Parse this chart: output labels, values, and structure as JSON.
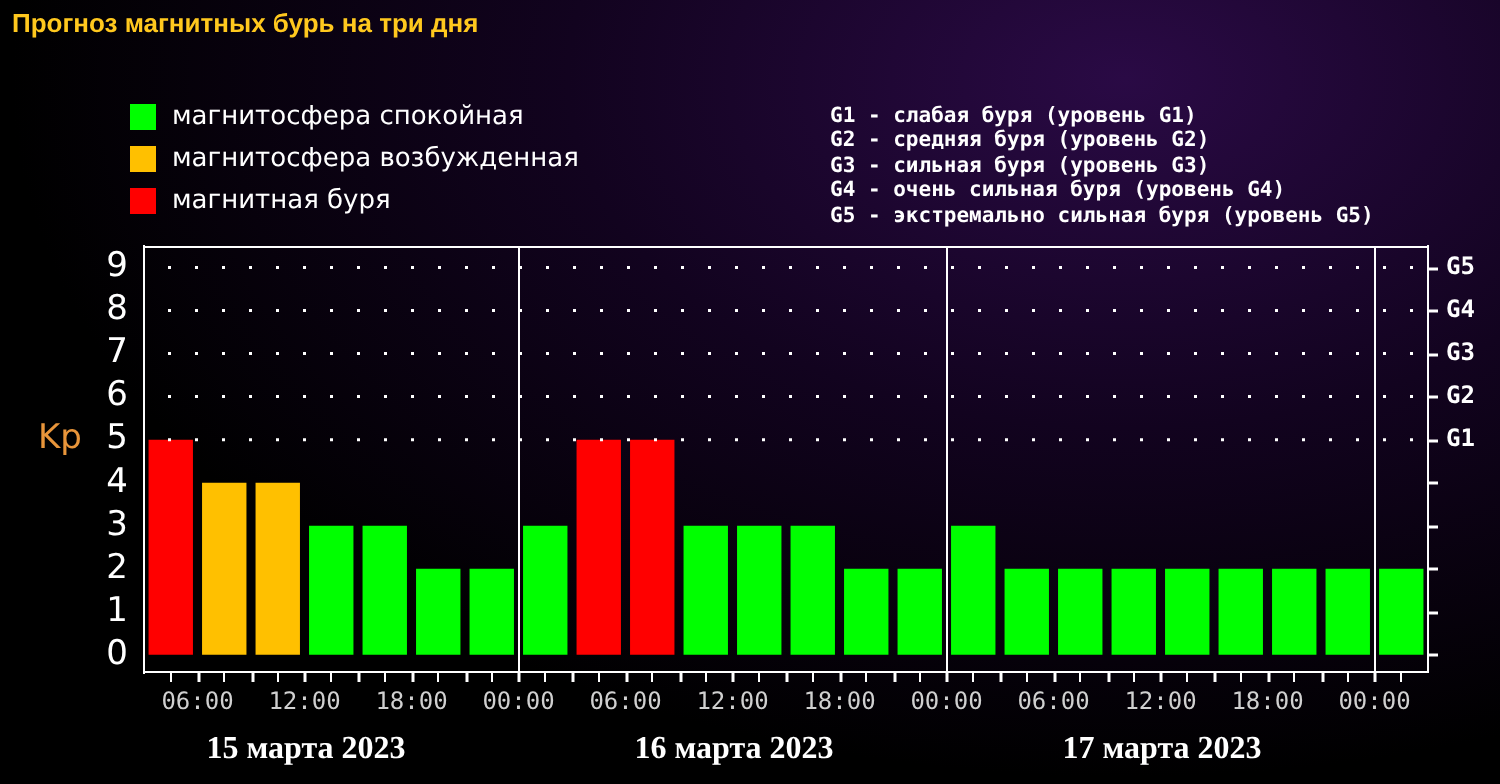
{
  "chart_data": {
    "type": "bar",
    "title": "Прогноз магнитных бурь на три дня",
    "ylabel": "Kp",
    "x": [
      "2023-03-15T04:30",
      "2023-03-15T07:30",
      "2023-03-15T10:30",
      "2023-03-15T13:30",
      "2023-03-15T16:30",
      "2023-03-15T19:30",
      "2023-03-15T22:30",
      "2023-03-16T01:30",
      "2023-03-16T04:30",
      "2023-03-16T07:30",
      "2023-03-16T10:30",
      "2023-03-16T13:30",
      "2023-03-16T16:30",
      "2023-03-16T19:30",
      "2023-03-16T22:30",
      "2023-03-17T01:30",
      "2023-03-17T04:30",
      "2023-03-17T07:30",
      "2023-03-17T10:30",
      "2023-03-17T13:30",
      "2023-03-17T16:30",
      "2023-03-17T19:30",
      "2023-03-17T22:30",
      "2023-03-18T01:30"
    ],
    "series": [
      {
        "name": "магнитосфера спокойная",
        "color": "#00ff00",
        "values": [
          null,
          null,
          null,
          3,
          3,
          2,
          2,
          3,
          null,
          null,
          3,
          3,
          3,
          2,
          2,
          3,
          2,
          2,
          2,
          2,
          2,
          2,
          2,
          2
        ]
      },
      {
        "name": "магнитосфера возбужденная",
        "color": "#ffc000",
        "values": [
          null,
          4,
          4,
          null,
          null,
          null,
          null,
          null,
          null,
          null,
          null,
          null,
          null,
          null,
          null,
          null,
          null,
          null,
          null,
          null,
          null,
          null,
          null,
          null
        ]
      },
      {
        "name": "магнитная буря",
        "color": "#ff0000",
        "values": [
          5,
          null,
          null,
          null,
          null,
          null,
          null,
          null,
          5,
          5,
          null,
          null,
          null,
          null,
          null,
          null,
          null,
          null,
          null,
          null,
          null,
          null,
          null,
          null
        ]
      }
    ],
    "xlim": [
      "2023-03-15T03:00",
      "2023-03-18T03:00"
    ],
    "xticks": [
      {
        "value": "2023-03-15T06:00",
        "label": "06:00"
      },
      {
        "value": "2023-03-15T09:00",
        "label": null
      },
      {
        "value": "2023-03-15T12:00",
        "label": "12:00"
      },
      {
        "value": "2023-03-15T15:00",
        "label": null
      },
      {
        "value": "2023-03-15T18:00",
        "label": "18:00"
      },
      {
        "value": "2023-03-15T21:00",
        "label": null
      },
      {
        "value": "2023-03-16T00:00",
        "label": "00:00"
      },
      {
        "value": "2023-03-16T03:00",
        "label": null
      },
      {
        "value": "2023-03-16T06:00",
        "label": "06:00"
      },
      {
        "value": "2023-03-16T09:00",
        "label": null
      },
      {
        "value": "2023-03-16T12:00",
        "label": "12:00"
      },
      {
        "value": "2023-03-16T15:00",
        "label": null
      },
      {
        "value": "2023-03-16T18:00",
        "label": "18:00"
      },
      {
        "value": "2023-03-16T21:00",
        "label": null
      },
      {
        "value": "2023-03-17T00:00",
        "label": "00:00"
      },
      {
        "value": "2023-03-17T03:00",
        "label": null
      },
      {
        "value": "2023-03-17T06:00",
        "label": "06:00"
      },
      {
        "value": "2023-03-17T09:00",
        "label": null
      },
      {
        "value": "2023-03-17T12:00",
        "label": "12:00"
      },
      {
        "value": "2023-03-17T15:00",
        "label": null
      },
      {
        "value": "2023-03-17T18:00",
        "label": "18:00"
      },
      {
        "value": "2023-03-17T21:00",
        "label": null
      },
      {
        "value": "2023-03-18T00:00",
        "label": "00:00"
      }
    ],
    "ylim": [
      -0.4,
      9.5
    ],
    "yticks": [
      0,
      1,
      2,
      3,
      4,
      5,
      6,
      7,
      8,
      9
    ],
    "ref_lines": [
      {
        "axis": "x",
        "value": "2023-03-16T00:00"
      },
      {
        "axis": "x",
        "value": "2023-03-17T00:00"
      },
      {
        "axis": "x",
        "value": "2023-03-18T00:00"
      },
      {
        "axis": "y",
        "value": 5,
        "label": "G1",
        "line_style": "dotted"
      },
      {
        "axis": "y",
        "value": 6,
        "label": "G2",
        "line_style": "dotted"
      },
      {
        "axis": "y",
        "value": 7,
        "label": "G3",
        "line_style": "dotted"
      },
      {
        "axis": "y",
        "value": 8,
        "label": "G4",
        "line_style": "dotted"
      },
      {
        "axis": "y",
        "value": 9,
        "label": "G5",
        "line_style": "dotted"
      }
    ],
    "legend": "top left",
    "annotations": [
      "G1 - слабая буря (уровень G1)",
      "G2 - средняя буря (уровень G2)",
      "G3 - сильная буря (уровень G3)",
      "G4 - очень сильная буря (уровень G4)",
      "G5 - экстремально сильная буря (уровень G5)",
      "15 марта 2023",
      "16 марта 2023",
      "17 марта 2023"
    ]
  }
}
